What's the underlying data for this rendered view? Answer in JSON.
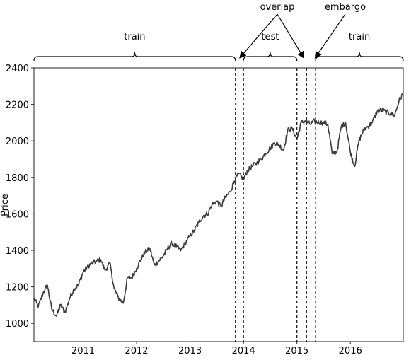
{
  "chart_data": {
    "type": "line",
    "xlabel": "",
    "ylabel": "Price",
    "x_ticks": [
      "2011",
      "2012",
      "2013",
      "2014",
      "2015",
      "2016"
    ],
    "y_ticks": [
      1000,
      1200,
      1400,
      1600,
      1800,
      2000,
      2200,
      2400
    ],
    "xlim": [
      2010.08,
      2016.99
    ],
    "ylim": [
      900,
      2400
    ],
    "grid": false,
    "series": [
      {
        "x": [
          2010.08,
          2010.16,
          2010.25,
          2010.33,
          2010.41,
          2010.5,
          2010.58,
          2010.66,
          2010.75,
          2010.83,
          2010.91,
          2011.0,
          2011.08,
          2011.16,
          2011.25,
          2011.33,
          2011.41,
          2011.5,
          2011.58,
          2011.66,
          2011.75,
          2011.83,
          2011.91,
          2012.0,
          2012.08,
          2012.16,
          2012.25,
          2012.33,
          2012.41,
          2012.5,
          2012.58,
          2012.66,
          2012.75,
          2012.83,
          2012.91,
          2013.0,
          2013.08,
          2013.16,
          2013.25,
          2013.33,
          2013.41,
          2013.5,
          2013.58,
          2013.66,
          2013.75,
          2013.83,
          2013.91,
          2014.0,
          2014.08,
          2014.16,
          2014.25,
          2014.33,
          2014.41,
          2014.5,
          2014.58,
          2014.66,
          2014.75,
          2014.83,
          2014.91,
          2015.0,
          2015.08,
          2015.16,
          2015.25,
          2015.33,
          2015.41,
          2015.5,
          2015.58,
          2015.66,
          2015.75,
          2015.83,
          2015.91,
          2016.0,
          2016.08,
          2016.16,
          2016.25,
          2016.33,
          2016.41,
          2016.5,
          2016.58,
          2016.66,
          2016.75,
          2016.83,
          2016.91,
          2016.99
        ],
        "y": [
          1140,
          1090,
          1165,
          1210,
          1080,
          1040,
          1100,
          1060,
          1140,
          1190,
          1210,
          1280,
          1310,
          1330,
          1340,
          1350,
          1290,
          1330,
          1190,
          1140,
          1110,
          1250,
          1250,
          1300,
          1350,
          1390,
          1410,
          1320,
          1340,
          1370,
          1410,
          1440,
          1420,
          1400,
          1440,
          1480,
          1510,
          1550,
          1590,
          1600,
          1650,
          1670,
          1640,
          1690,
          1720,
          1780,
          1820,
          1790,
          1840,
          1860,
          1880,
          1900,
          1930,
          1960,
          1990,
          1980,
          1950,
          2060,
          2070,
          2010,
          2100,
          2110,
          2090,
          2110,
          2100,
          2100,
          2090,
          1930,
          1940,
          2080,
          2100,
          1940,
          1860,
          2000,
          2060,
          2080,
          2100,
          2160,
          2170,
          2160,
          2150,
          2140,
          2220,
          2260
        ]
      }
    ],
    "cv_splits": [
      {
        "label": "train",
        "x0": 2010.08,
        "x1": 2013.85
      },
      {
        "label": "test",
        "x0": 2014.0,
        "x1": 2015.0
      },
      {
        "label": "train",
        "x0": 2015.35,
        "x1": 2016.99
      }
    ],
    "dashed_lines_x": [
      2013.85,
      2014.0,
      2015.0,
      2015.18,
      2015.35
    ],
    "annotations": [
      {
        "text": "overlap",
        "points_to": [
          2013.85,
          2015.05
        ]
      },
      {
        "text": "embargo",
        "points_to": [
          2015.26
        ]
      }
    ],
    "colors": {
      "line": "#3a3a3a",
      "axis": "#000000",
      "annotation": "#000000"
    }
  }
}
